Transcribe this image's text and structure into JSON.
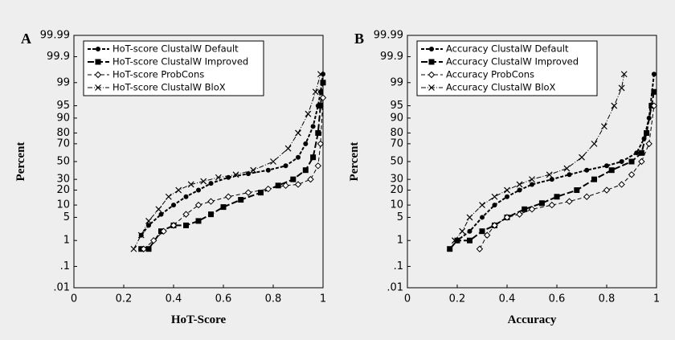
{
  "chart_data": [
    {
      "type": "line",
      "panel_label": "A",
      "xlabel": "HoT-Score",
      "ylabel": "Percent",
      "yscale": "probability",
      "legend": "upper left",
      "xlim": [
        0,
        1
      ],
      "xticks": [
        0,
        0.2,
        0.4,
        0.6,
        0.8,
        1
      ],
      "ylim": [
        0.01,
        99.99
      ],
      "yticks": [
        {
          "value": 0.01,
          "label": ".01"
        },
        {
          "value": 0.1,
          "label": ".1"
        },
        1,
        5,
        10,
        20,
        30,
        50,
        70,
        80,
        90,
        95,
        99,
        99.9,
        99.99
      ],
      "series": [
        {
          "name": "HoT-score ClustalW Default",
          "color": "#000000",
          "marker": "circle",
          "dash": "4 2",
          "width": 2,
          "x": [
            0.27,
            0.3,
            0.35,
            0.4,
            0.45,
            0.5,
            0.55,
            0.62,
            0.7,
            0.78,
            0.85,
            0.9,
            0.93,
            0.96,
            0.98,
            0.99,
            1.0
          ],
          "values": [
            1.5,
            3,
            6,
            10,
            15,
            20,
            26,
            32,
            36,
            40,
            45,
            55,
            70,
            85,
            95,
            98,
            99.5
          ]
        },
        {
          "name": "HoT-score ClustalW Improved",
          "color": "#000000",
          "marker": "square",
          "dash": "8 3",
          "width": 2,
          "x": [
            0.27,
            0.3,
            0.35,
            0.4,
            0.45,
            0.5,
            0.55,
            0.6,
            0.67,
            0.75,
            0.82,
            0.88,
            0.93,
            0.96,
            0.98,
            0.99,
            1.0
          ],
          "values": [
            0.5,
            0.5,
            2,
            3,
            3,
            4,
            6,
            9,
            13,
            18,
            24,
            30,
            40,
            55,
            80,
            95,
            99
          ]
        },
        {
          "name": "HoT-score ProbCons",
          "color": "#000000",
          "marker": "diamond",
          "dash": "5 3",
          "width": 1,
          "x": [
            0.28,
            0.32,
            0.36,
            0.4,
            0.45,
            0.5,
            0.55,
            0.62,
            0.7,
            0.78,
            0.85,
            0.9,
            0.95,
            0.98,
            0.99,
            1.0
          ],
          "values": [
            0.5,
            1,
            2,
            3,
            6,
            10,
            12,
            15,
            18,
            21,
            24,
            25,
            30,
            45,
            70,
            97
          ]
        },
        {
          "name": "HoT-score ClustalW BloX",
          "color": "#000000",
          "marker": "cross",
          "dash": "6 2 1 2",
          "width": 1,
          "x": [
            0.24,
            0.27,
            0.3,
            0.34,
            0.38,
            0.42,
            0.47,
            0.52,
            0.58,
            0.65,
            0.72,
            0.8,
            0.86,
            0.9,
            0.94,
            0.97,
            0.99
          ],
          "values": [
            0.5,
            1.5,
            4,
            8,
            15,
            20,
            25,
            28,
            32,
            35,
            40,
            50,
            65,
            80,
            92,
            98,
            99.5
          ]
        }
      ]
    },
    {
      "type": "line",
      "panel_label": "B",
      "xlabel": "Accuracy",
      "ylabel": "Percent",
      "yscale": "probability",
      "legend": "upper left",
      "xlim": [
        0,
        1
      ],
      "xticks": [
        0,
        0.2,
        0.4,
        0.6,
        0.8,
        1
      ],
      "ylim": [
        0.01,
        99.99
      ],
      "yticks": [
        {
          "value": 0.01,
          "label": ".01"
        },
        {
          "value": 0.1,
          "label": ".1"
        },
        1,
        5,
        10,
        20,
        30,
        50,
        70,
        80,
        90,
        95,
        99,
        99.9,
        99.99
      ],
      "series": [
        {
          "name": "Accuracy ClustalW Default",
          "color": "#000000",
          "marker": "circle",
          "dash": "4 2",
          "width": 2,
          "x": [
            0.17,
            0.2,
            0.25,
            0.3,
            0.35,
            0.4,
            0.45,
            0.5,
            0.58,
            0.65,
            0.72,
            0.8,
            0.86,
            0.92,
            0.95,
            0.97,
            0.99
          ],
          "values": [
            0.5,
            1,
            2,
            5,
            10,
            15,
            20,
            25,
            30,
            35,
            40,
            45,
            50,
            60,
            75,
            90,
            99.5
          ]
        },
        {
          "name": "Accuracy ClustalW Improved",
          "color": "#000000",
          "marker": "square",
          "dash": "8 3",
          "width": 2,
          "x": [
            0.17,
            0.2,
            0.25,
            0.3,
            0.35,
            0.4,
            0.47,
            0.54,
            0.6,
            0.68,
            0.75,
            0.82,
            0.9,
            0.94,
            0.96,
            0.98,
            0.99
          ],
          "values": [
            0.5,
            1,
            1,
            2,
            3,
            5,
            8,
            11,
            15,
            20,
            30,
            40,
            50,
            60,
            80,
            95,
            98
          ]
        },
        {
          "name": "Accuracy ProbCons",
          "color": "#000000",
          "marker": "diamond",
          "dash": "5 3",
          "width": 1,
          "x": [
            0.29,
            0.32,
            0.35,
            0.4,
            0.45,
            0.5,
            0.58,
            0.65,
            0.72,
            0.8,
            0.86,
            0.9,
            0.94,
            0.97,
            0.99
          ],
          "values": [
            0.5,
            1.5,
            3,
            5,
            6,
            8,
            10,
            12,
            15,
            20,
            25,
            35,
            50,
            70,
            95
          ]
        },
        {
          "name": "Accuracy ClustalW BloX",
          "color": "#000000",
          "marker": "cross",
          "dash": "6 2 1 2",
          "width": 1,
          "x": [
            0.19,
            0.22,
            0.25,
            0.3,
            0.35,
            0.4,
            0.45,
            0.5,
            0.57,
            0.64,
            0.7,
            0.75,
            0.79,
            0.83,
            0.86,
            0.87
          ],
          "values": [
            1,
            2,
            5,
            10,
            15,
            20,
            25,
            30,
            35,
            42,
            55,
            70,
            85,
            95,
            98.5,
            99.5
          ]
        }
      ]
    }
  ]
}
